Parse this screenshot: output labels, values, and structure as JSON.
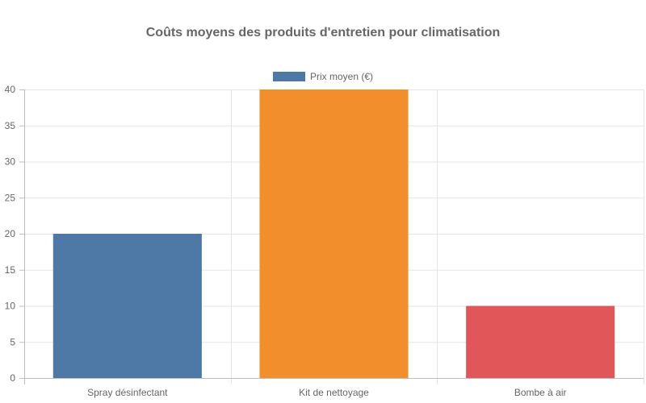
{
  "chart_data": {
    "type": "bar",
    "title": "Coûts moyens des produits d'entretien pour climatisation",
    "categories": [
      "Spray désinfectant",
      "Kit de nettoyage",
      "Bombe à air"
    ],
    "series": [
      {
        "name": "Prix moyen (€)",
        "values": [
          20,
          40,
          10
        ],
        "colors": [
          "#4e79a7",
          "#f28e2b",
          "#e15759"
        ],
        "legend_color": "#4e79a7"
      }
    ],
    "xlabel": "",
    "ylabel": "",
    "ylim": [
      0,
      40
    ],
    "yticks": [
      0,
      5,
      10,
      15,
      20,
      25,
      30,
      35,
      40
    ],
    "grid": true,
    "legend_position": "top"
  }
}
